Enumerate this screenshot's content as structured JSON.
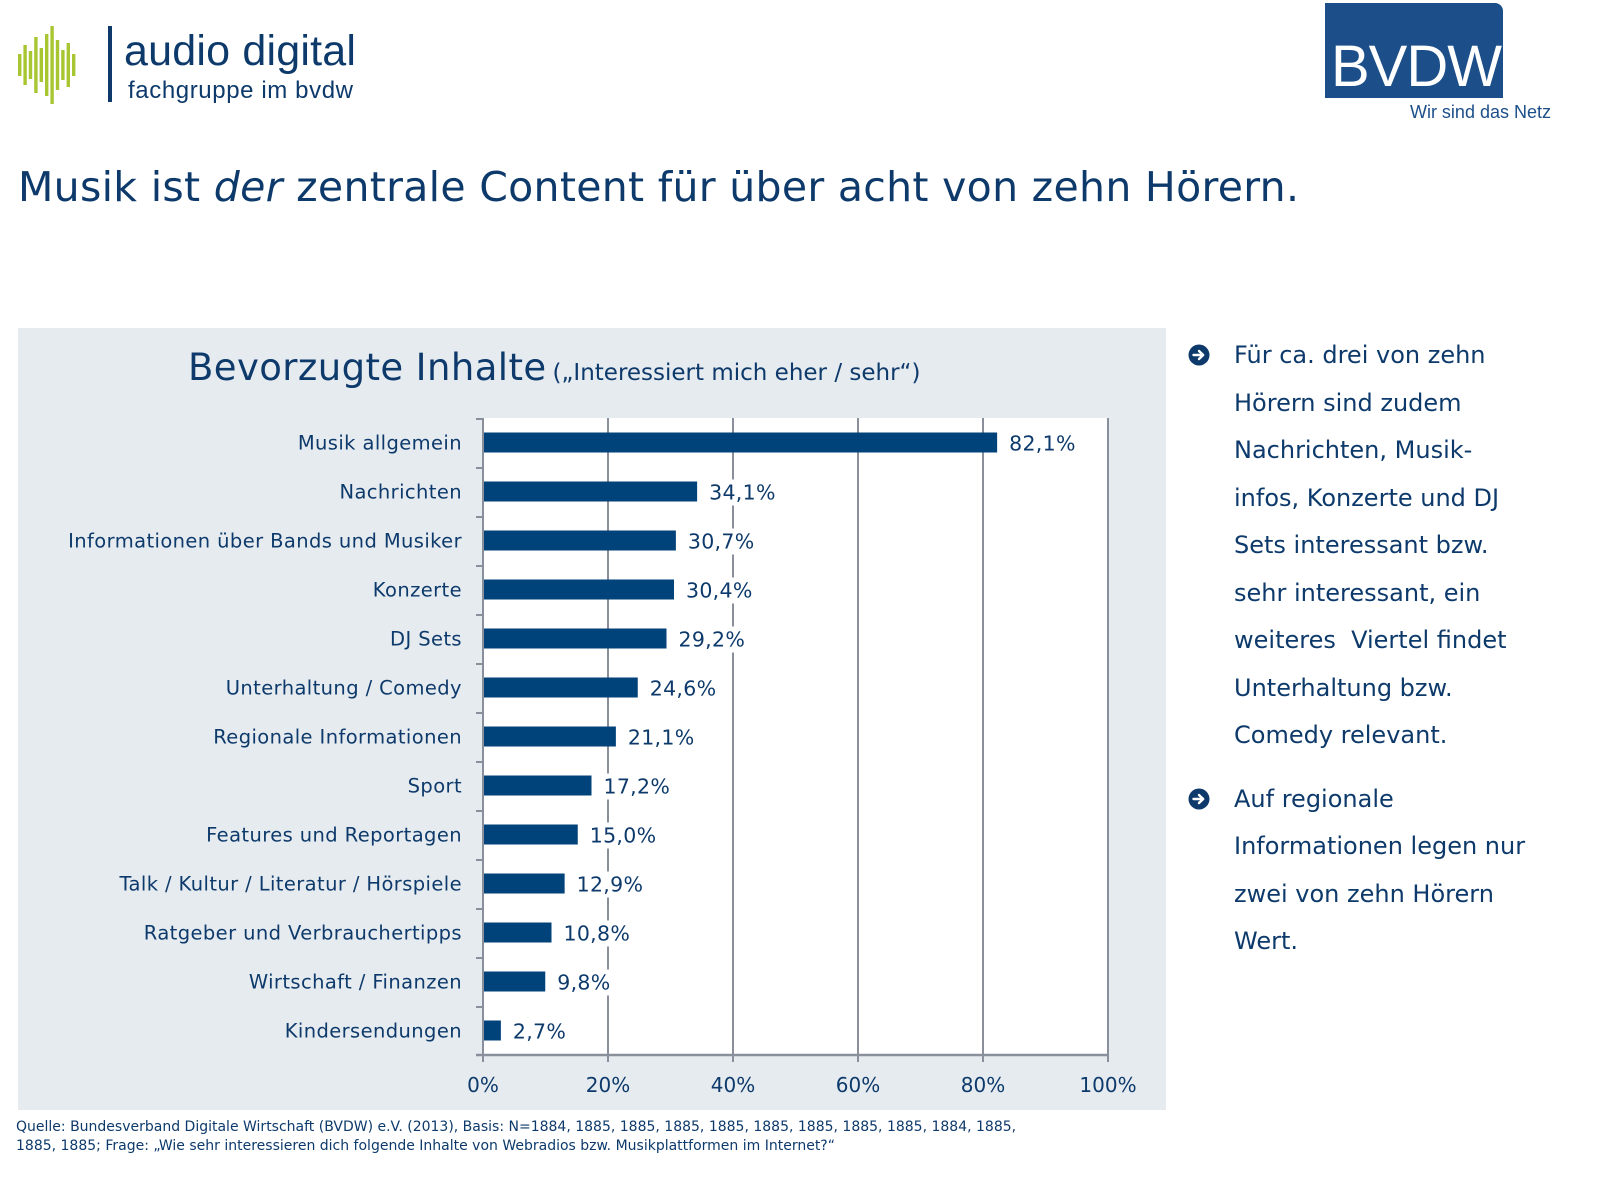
{
  "logos": {
    "audio_digital": {
      "name": "audio digital",
      "subtitle": "fachgruppe im bvdw",
      "accent_color": "#a8c632",
      "text_color": "#0d3a6b"
    },
    "bvdw": {
      "name": "BVDW",
      "tagline": "Wir sind das Netz",
      "color": "#1c4f8a"
    }
  },
  "headline": {
    "before": "Musik ist ",
    "emphasis": "der",
    "after": " zentrale Content für über acht von zehn Hörern."
  },
  "bullets": [
    {
      "icon": "arrow-circle-right-icon",
      "lines": [
        "Für ca. drei von zehn",
        "Hörern sind zudem",
        "Nachrichten, Musik-",
        "infos, Konzerte und DJ",
        "Sets interessant bzw.",
        "sehr interessant, ein",
        "weiteres  Viertel findet",
        "Unterhaltung bzw.",
        "Comedy relevant."
      ]
    },
    {
      "icon": "arrow-circle-right-icon",
      "lines": [
        "Auf regionale",
        "Informationen legen nur",
        "zwei von zehn Hörern",
        "Wert."
      ]
    }
  ],
  "source": {
    "line1": "Quelle: Bundesverband Digitale Wirtschaft (BVDW) e.V. (2013), Basis: N=1884, 1885, 1885, 1885, 1885, 1885, 1885, 1885, 1885, 1884, 1885,",
    "line2": "1885, 1885;  Frage: „Wie sehr interessieren dich folgende Inhalte von Webradios bzw. Musikplattformen im Internet?“"
  },
  "colors": {
    "bar": "#00427a",
    "text": "#0d3a6b",
    "panel_bg": "#e6ebf0",
    "plot_bg": "#ffffff",
    "grid": "#8a8f9c"
  },
  "chart_data": {
    "type": "bar",
    "orientation": "horizontal",
    "title": "Bevorzugte Inhalte",
    "subtitle": "(„Interessiert mich eher / sehr“)",
    "xlabel": "",
    "ylabel": "",
    "categories": [
      "Musik allgemein",
      "Nachrichten",
      "Informationen über Bands und Musiker",
      "Konzerte",
      "DJ Sets",
      "Unterhaltung / Comedy",
      "Regionale Informationen",
      "Sport",
      "Features und Reportagen",
      "Talk / Kultur / Literatur / Hörspiele",
      "Ratgeber und Verbrauchertipps",
      "Wirtschaft / Finanzen",
      "Kindersendungen"
    ],
    "values": [
      82.1,
      34.1,
      30.7,
      30.4,
      29.2,
      24.6,
      21.1,
      17.2,
      15.0,
      12.9,
      10.8,
      9.8,
      2.7
    ],
    "value_labels": [
      "82,1%",
      "34,1%",
      "30,7%",
      "30,4%",
      "29,2%",
      "24,6%",
      "21,1%",
      "17,2%",
      "15,0%",
      "12,9%",
      "10,8%",
      "9,8%",
      "2,7%"
    ],
    "xlim": [
      0,
      100
    ],
    "xticks": [
      0,
      20,
      40,
      60,
      80,
      100
    ],
    "xtick_labels": [
      "0%",
      "20%",
      "40%",
      "60%",
      "80%",
      "100%"
    ],
    "grid": true,
    "legend": "none"
  }
}
